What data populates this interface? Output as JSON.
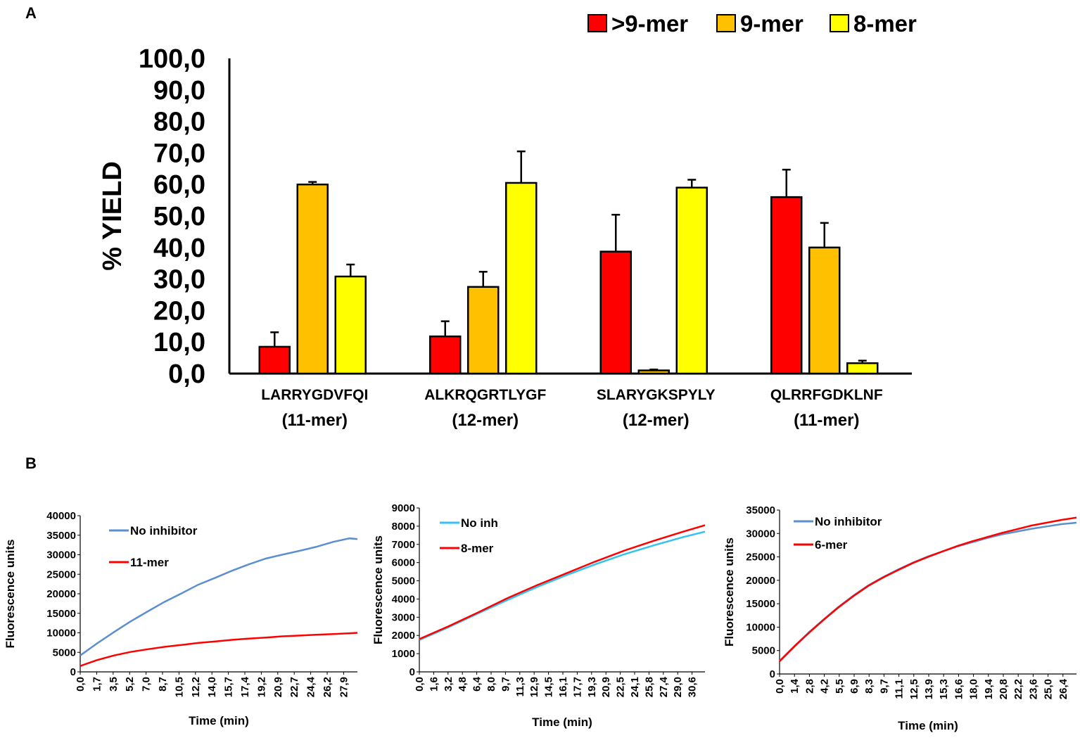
{
  "panels": {
    "a": "A",
    "b": "B"
  },
  "chart_data": [
    {
      "type": "bar",
      "panel": "A",
      "title": "",
      "ylabel": "% YIELD",
      "xlabel": "",
      "ylim": [
        0,
        100
      ],
      "yticks": [
        "0,0",
        "10,0",
        "20,0",
        "30,0",
        "40,0",
        "50,0",
        "60,0",
        "70,0",
        "80,0",
        "90,0",
        "100,0"
      ],
      "categories": [
        "LARRYGDVFQI",
        "ALKRQGRTLYGF",
        "SLARYGKSPYLY",
        "QLRRFGDKLNF"
      ],
      "category_lengths": [
        "(11-mer)",
        "(12-mer)",
        "(12-mer)",
        "(11-mer)"
      ],
      "legend_position": "top-right",
      "series": [
        {
          "name": ">9-mer",
          "color": "#ff0000",
          "values": [
            8.5,
            11.8,
            38.7,
            56.0
          ],
          "errors": [
            4.6,
            4.8,
            11.7,
            8.7
          ]
        },
        {
          "name": "9-mer",
          "color": "#ffc000",
          "values": [
            60.0,
            27.5,
            1.0,
            40.0
          ],
          "errors": [
            0.8,
            4.8,
            0.3,
            7.8
          ]
        },
        {
          "name": "8-mer",
          "color": "#ffff00",
          "values": [
            30.8,
            60.5,
            59.0,
            3.3
          ],
          "errors": [
            3.8,
            10.0,
            2.5,
            0.8
          ]
        }
      ]
    },
    {
      "type": "line",
      "panel": "B1",
      "title": "",
      "xlabel": "Time (min)",
      "ylabel": "Fluorescence units",
      "xlim": [
        0,
        28.7
      ],
      "ylim": [
        0,
        40000
      ],
      "yticks": [
        "0",
        "5000",
        "10000",
        "15000",
        "20000",
        "25000",
        "30000",
        "35000",
        "40000"
      ],
      "xticks": [
        "0,0",
        "1,7",
        "3,5",
        "5,2",
        "7,0",
        "8,7",
        "10,5",
        "12,2",
        "14,0",
        "15,7",
        "17,4",
        "19,2",
        "20,9",
        "22,7",
        "24,4",
        "26,2",
        "27,9"
      ],
      "legend_position": "top-left",
      "series": [
        {
          "name": "No inhibitor",
          "color": "#5b8fd0",
          "x": [
            0,
            1.7,
            3.5,
            5.2,
            7,
            8.7,
            10.5,
            12.2,
            14,
            15.7,
            17.4,
            19.2,
            20.9,
            22.7,
            24.4,
            26.2,
            27.9,
            28.7
          ],
          "y": [
            4200,
            7200,
            10200,
            12900,
            15500,
            17900,
            20100,
            22300,
            24100,
            25900,
            27500,
            29000,
            30000,
            31000,
            32000,
            33300,
            34200,
            34000
          ]
        },
        {
          "name": "11-mer",
          "color": "#ff0000",
          "x": [
            0,
            1.7,
            3.5,
            5.2,
            7,
            8.7,
            10.5,
            12.2,
            14,
            15.7,
            17.4,
            19.2,
            20.9,
            22.7,
            24.4,
            26.2,
            27.9,
            28.7
          ],
          "y": [
            1500,
            3000,
            4200,
            5100,
            5800,
            6400,
            6900,
            7400,
            7800,
            8200,
            8500,
            8800,
            9100,
            9300,
            9500,
            9700,
            9900,
            10000
          ]
        }
      ]
    },
    {
      "type": "line",
      "panel": "B2",
      "title": "",
      "xlabel": "Time (min)",
      "ylabel": "Fluorescence units",
      "xlim": [
        0,
        31.4
      ],
      "ylim": [
        0,
        9000
      ],
      "yticks": [
        "0",
        "1000",
        "2000",
        "3000",
        "4000",
        "5000",
        "6000",
        "7000",
        "8000",
        "9000"
      ],
      "xticks": [
        "0,0",
        "1,6",
        "3,2",
        "4,8",
        "6,4",
        "8,0",
        "9,7",
        "11,3",
        "12,9",
        "14,5",
        "16,1",
        "17,7",
        "19,3",
        "20,9",
        "22,5",
        "24,1",
        "25,8",
        "27,4",
        "29,0",
        "30,6"
      ],
      "legend_position": "top-left",
      "series": [
        {
          "name": "No inh",
          "color": "#33c3f0",
          "x": [
            0,
            3.2,
            6.4,
            9.7,
            12.9,
            16.1,
            19.3,
            22.5,
            25.8,
            29,
            31.4
          ],
          "y": [
            1750,
            2450,
            3200,
            3950,
            4650,
            5300,
            5900,
            6450,
            6950,
            7400,
            7700
          ]
        },
        {
          "name": "8-mer",
          "color": "#ff0000",
          "x": [
            0,
            3.2,
            6.4,
            9.7,
            12.9,
            16.1,
            19.3,
            22.5,
            25.8,
            29,
            31.4
          ],
          "y": [
            1800,
            2500,
            3250,
            4050,
            4750,
            5400,
            6050,
            6650,
            7200,
            7700,
            8050
          ]
        }
      ]
    },
    {
      "type": "line",
      "panel": "B3",
      "title": "",
      "xlabel": "Time (min)",
      "ylabel": "Fluorescence units",
      "xlim": [
        0,
        27.8
      ],
      "ylim": [
        0,
        35000
      ],
      "yticks": [
        "0",
        "5000",
        "10000",
        "15000",
        "20000",
        "25000",
        "30000",
        "35000"
      ],
      "xticks": [
        "0,0",
        "1,4",
        "2,8",
        "4,2",
        "5,5",
        "6,9",
        "8,3",
        "9,7",
        "11,1",
        "12,5",
        "13,9",
        "15,3",
        "16,6",
        "18,0",
        "19,4",
        "20,8",
        "22,2",
        "23,6",
        "25,0",
        "26,4"
      ],
      "legend_position": "top-left",
      "series": [
        {
          "name": "No inhibitor",
          "color": "#5b8fd0",
          "x": [
            0,
            1.4,
            2.8,
            4.2,
            5.5,
            6.9,
            8.3,
            9.7,
            11.1,
            12.5,
            13.9,
            15.3,
            16.6,
            18,
            19.4,
            20.8,
            22.2,
            23.6,
            25,
            26.4,
            27.8
          ],
          "y": [
            2800,
            6000,
            9000,
            11800,
            14300,
            16700,
            18900,
            20700,
            22300,
            23800,
            25100,
            26200,
            27200,
            28100,
            29000,
            29800,
            30400,
            31000,
            31500,
            32000,
            32300
          ]
        },
        {
          "name": "6-mer",
          "color": "#ff0000",
          "x": [
            0,
            1.4,
            2.8,
            4.2,
            5.5,
            6.9,
            8.3,
            9.7,
            11.1,
            12.5,
            13.9,
            15.3,
            16.6,
            18,
            19.4,
            20.8,
            22.2,
            23.6,
            25,
            26.4,
            27.8
          ],
          "y": [
            2700,
            5900,
            8900,
            11700,
            14200,
            16600,
            18800,
            20600,
            22200,
            23700,
            25000,
            26200,
            27300,
            28300,
            29200,
            30100,
            30900,
            31700,
            32300,
            32900,
            33400
          ]
        }
      ]
    }
  ]
}
